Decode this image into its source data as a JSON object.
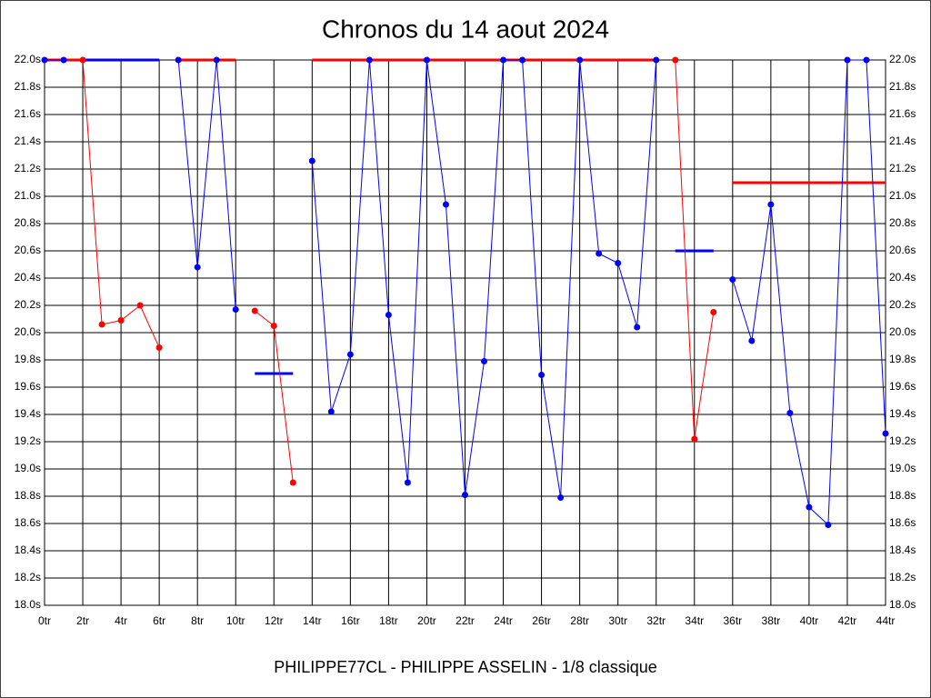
{
  "chart_data": {
    "type": "line",
    "title": "Chronos du 14 aout 2024",
    "footer": "PHILIPPE77CL - PHILIPPE ASSELIN - 1/8 classique",
    "x": [
      0,
      1,
      2,
      3,
      4,
      5,
      6,
      7,
      8,
      9,
      10,
      11,
      12,
      13,
      14,
      15,
      16,
      17,
      18,
      19,
      20,
      21,
      22,
      23,
      24,
      25,
      26,
      27,
      28,
      29,
      30,
      31,
      32,
      33,
      34,
      35,
      36,
      37,
      38,
      39,
      40,
      41,
      42,
      43,
      44
    ],
    "xlim": [
      0,
      44
    ],
    "xticks": [
      {
        "value": 0,
        "label": "0tr"
      },
      {
        "value": 2,
        "label": "2tr"
      },
      {
        "value": 4,
        "label": "4tr"
      },
      {
        "value": 6,
        "label": "6tr"
      },
      {
        "value": 8,
        "label": "8tr"
      },
      {
        "value": 10,
        "label": "10tr"
      },
      {
        "value": 12,
        "label": "12tr"
      },
      {
        "value": 14,
        "label": "14tr"
      },
      {
        "value": 16,
        "label": "16tr"
      },
      {
        "value": 18,
        "label": "18tr"
      },
      {
        "value": 20,
        "label": "20tr"
      },
      {
        "value": 22,
        "label": "22tr"
      },
      {
        "value": 24,
        "label": "24tr"
      },
      {
        "value": 26,
        "label": "26tr"
      },
      {
        "value": 28,
        "label": "28tr"
      },
      {
        "value": 30,
        "label": "30tr"
      },
      {
        "value": 32,
        "label": "32tr"
      },
      {
        "value": 34,
        "label": "34tr"
      },
      {
        "value": 36,
        "label": "36tr"
      },
      {
        "value": 38,
        "label": "38tr"
      },
      {
        "value": 40,
        "label": "40tr"
      },
      {
        "value": 42,
        "label": "42tr"
      },
      {
        "value": 44,
        "label": "44tr"
      }
    ],
    "ylim": [
      18.0,
      22.0
    ],
    "yticks": [
      {
        "value": 18.0,
        "label": "18.0s"
      },
      {
        "value": 18.2,
        "label": "18.2s"
      },
      {
        "value": 18.4,
        "label": "18.4s"
      },
      {
        "value": 18.6,
        "label": "18.6s"
      },
      {
        "value": 18.8,
        "label": "18.8s"
      },
      {
        "value": 19.0,
        "label": "19.0s"
      },
      {
        "value": 19.2,
        "label": "19.2s"
      },
      {
        "value": 19.4,
        "label": "19.4s"
      },
      {
        "value": 19.6,
        "label": "19.6s"
      },
      {
        "value": 19.8,
        "label": "19.8s"
      },
      {
        "value": 20.0,
        "label": "20.0s"
      },
      {
        "value": 20.2,
        "label": "20.2s"
      },
      {
        "value": 20.4,
        "label": "20.4s"
      },
      {
        "value": 20.6,
        "label": "20.6s"
      },
      {
        "value": 20.8,
        "label": "20.8s"
      },
      {
        "value": 21.0,
        "label": "21.0s"
      },
      {
        "value": 21.2,
        "label": "21.2s"
      },
      {
        "value": 21.4,
        "label": "21.4s"
      },
      {
        "value": 21.6,
        "label": "21.6s"
      },
      {
        "value": 21.8,
        "label": "21.8s"
      },
      {
        "value": 22.0,
        "label": "22.0s"
      }
    ],
    "grid": true,
    "series": [
      {
        "color": "#0000ff",
        "values": [
          22.0,
          22.0,
          null,
          null,
          null,
          null,
          null,
          22.0,
          20.48,
          22.0,
          20.17,
          null,
          null,
          null,
          21.26,
          19.42,
          19.84,
          22.0,
          20.13,
          18.9,
          22.0,
          20.94,
          18.81,
          19.79,
          22.0,
          22.0,
          19.69,
          18.79,
          22.0,
          20.58,
          20.51,
          20.04,
          22.0,
          null,
          null,
          null,
          20.39,
          19.94,
          20.94,
          19.41,
          18.72,
          18.59,
          22.0,
          22.0,
          19.26
        ]
      },
      {
        "color": "#ff0000",
        "values": [
          null,
          null,
          22.0,
          20.06,
          20.09,
          20.2,
          19.89,
          null,
          null,
          null,
          null,
          20.16,
          20.05,
          18.9,
          null,
          null,
          null,
          null,
          null,
          null,
          null,
          null,
          null,
          null,
          null,
          null,
          null,
          null,
          null,
          null,
          null,
          null,
          null,
          22.0,
          19.22,
          20.15,
          null,
          null,
          null,
          null,
          null,
          null,
          null,
          null,
          null
        ]
      }
    ],
    "level_lines": [
      {
        "color": "#ff0000",
        "x": [
          0,
          2
        ],
        "y": 22.0
      },
      {
        "color": "#0000ff",
        "x": [
          2,
          6
        ],
        "y": 22.0
      },
      {
        "color": "#ff0000",
        "x": [
          7,
          10
        ],
        "y": 22.0
      },
      {
        "color": "#0000ff",
        "x": [
          11,
          13
        ],
        "y": 19.7
      },
      {
        "color": "#ff0000",
        "x": [
          14,
          32
        ],
        "y": 22.0
      },
      {
        "color": "#0000ff",
        "x": [
          33,
          35
        ],
        "y": 20.6
      },
      {
        "color": "#ff0000",
        "x": [
          36,
          44
        ],
        "y": 21.1
      }
    ]
  }
}
